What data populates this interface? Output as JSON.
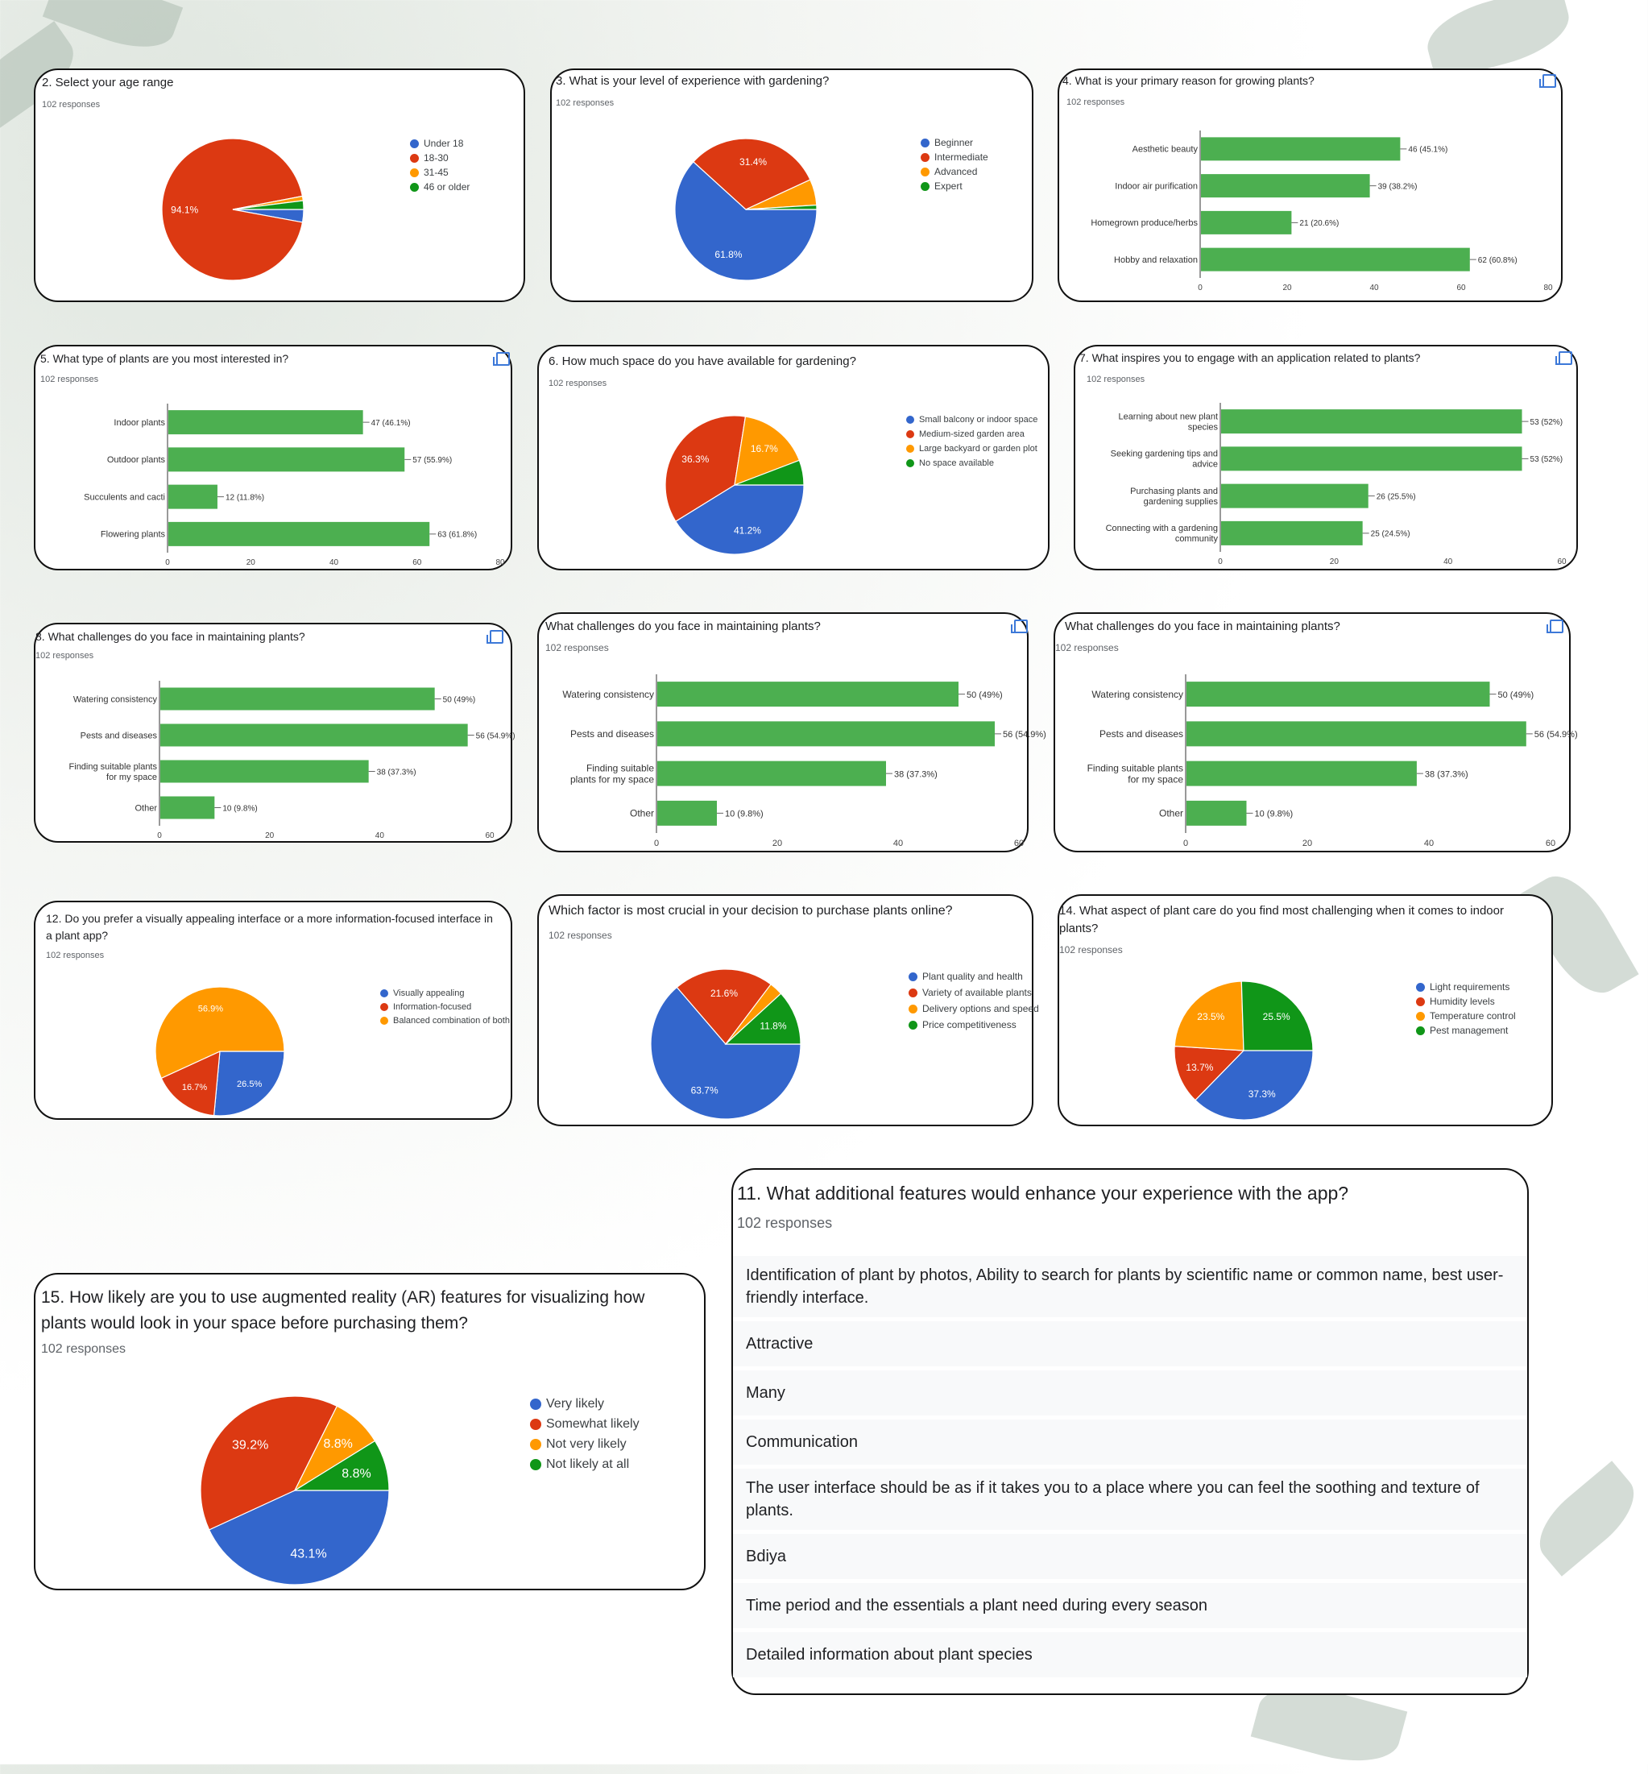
{
  "colors": {
    "blue": "#3366cc",
    "red": "#dc3912",
    "orange": "#ff9900",
    "green": "#109618",
    "bar": "#4caf50"
  },
  "panels": {
    "age": {
      "title": "2. Select your age range",
      "responses": "102 responses"
    },
    "experience": {
      "title": "3. What is your level of experience with gardening?",
      "responses": "102 responses"
    },
    "reason": {
      "title": "4. What is your primary reason for growing plants?",
      "responses": "102 responses"
    },
    "plant_types": {
      "title": "5. What type of plants are you most interested in?",
      "responses": "102 responses"
    },
    "space": {
      "title": "6. How much space do you have available for gardening?",
      "responses": "102 responses"
    },
    "inspires": {
      "title": "7. What inspires you to engage with an application related to plants?",
      "responses": "102 responses"
    },
    "challenges_a": {
      "title": "8. What challenges do you face in maintaining plants?",
      "responses": "102 responses"
    },
    "challenges_b": {
      "title": "What challenges do you face in maintaining plants?",
      "responses": "102 responses"
    },
    "challenges_c": {
      "title": "What challenges do you face in maintaining plants?",
      "responses": "102 responses"
    },
    "interface": {
      "title": "12. Do you prefer a visually appealing interface or a more information-focused interface in a plant app?",
      "responses": "102 responses"
    },
    "factor": {
      "title": "Which factor is most crucial in your decision to purchase plants online?",
      "responses": "102 responses"
    },
    "care": {
      "title": "14. What aspect of plant care do you find most challenging when it comes to indoor plants?",
      "responses": "102 responses"
    },
    "ar": {
      "title": "15. How likely are you to use augmented reality (AR) features for visualizing how plants would look in your space before purchasing them?",
      "responses": "102 responses"
    },
    "features": {
      "title": "11. What additional features would enhance your experience with the app?",
      "responses": "102 responses",
      "answers": [
        "Identification of plant by photos, Ability to search for plants by scientific name or common name, best user-friendly interface.",
        "Attractive",
        "Many",
        "Communication",
        "The user interface should be as if it takes you to a place where you can feel the soothing and texture of plants.",
        "Bdiya",
        "Time period and the essentials a plant need during every season",
        "Detailed information about plant species"
      ]
    }
  },
  "chart_data": [
    {
      "id": "age",
      "type": "pie",
      "labels": [
        "Under 18",
        "18-30",
        "31-45",
        "46 or older"
      ],
      "values": [
        2.9,
        94.1,
        1.0,
        2.0
      ],
      "slice_labels": [
        "",
        "94.1%",
        "",
        ""
      ]
    },
    {
      "id": "experience",
      "type": "pie",
      "labels": [
        "Beginner",
        "Intermediate",
        "Advanced",
        "Expert"
      ],
      "values": [
        61.8,
        31.4,
        5.9,
        1.0
      ],
      "slice_labels": [
        "61.8%",
        "31.4%",
        "",
        ""
      ]
    },
    {
      "id": "reason",
      "type": "bar",
      "categories": [
        "Aesthetic beauty",
        "Indoor air purification",
        "Homegrown produce/herbs",
        "Hobby and relaxation"
      ],
      "values": [
        46,
        39,
        21,
        62
      ],
      "value_labels": [
        "46 (45.1%)",
        "39 (38.2%)",
        "21 (20.6%)",
        "62 (60.8%)"
      ],
      "xlim": [
        0,
        80
      ],
      "ticks": [
        0,
        20,
        40,
        60,
        80
      ]
    },
    {
      "id": "plant_types",
      "type": "bar",
      "categories": [
        "Indoor plants",
        "Outdoor plants",
        "Succulents and cacti",
        "Flowering plants"
      ],
      "values": [
        47,
        57,
        12,
        63
      ],
      "value_labels": [
        "47 (46.1%)",
        "57 (55.9%)",
        "12 (11.8%)",
        "63 (61.8%)"
      ],
      "xlim": [
        0,
        80
      ],
      "ticks": [
        0,
        20,
        40,
        60,
        80
      ]
    },
    {
      "id": "space",
      "type": "pie",
      "labels": [
        "Small balcony or indoor space",
        "Medium-sized garden area",
        "Large backyard or garden plot",
        "No space available"
      ],
      "values": [
        41.2,
        36.3,
        16.7,
        5.8
      ],
      "slice_labels": [
        "41.2%",
        "36.3%",
        "16.7%",
        ""
      ]
    },
    {
      "id": "inspires",
      "type": "bar",
      "categories": [
        "Learning about new plant species",
        "Seeking gardening tips and advice",
        "Purchasing plants and gardening supplies",
        "Connecting with a gardening community"
      ],
      "values": [
        53,
        53,
        26,
        25
      ],
      "value_labels": [
        "53 (52%)",
        "53 (52%)",
        "26 (25.5%)",
        "25 (24.5%)"
      ],
      "xlim": [
        0,
        60
      ],
      "ticks": [
        0,
        20,
        40,
        60
      ]
    },
    {
      "id": "challenges_a",
      "type": "bar",
      "categories": [
        "Watering consistency",
        "Pests and diseases",
        "Finding suitable plants for my space",
        "Other"
      ],
      "values": [
        50,
        56,
        38,
        10
      ],
      "value_labels": [
        "50 (49%)",
        "56 (54.9%)",
        "38 (37.3%)",
        "10 (9.8%)"
      ],
      "xlim": [
        0,
        60
      ],
      "ticks": [
        0,
        20,
        40,
        60
      ]
    },
    {
      "id": "challenges_b",
      "type": "bar",
      "categories": [
        "Watering consistency",
        "Pests and diseases",
        "Finding suitable plants for my space",
        "Other"
      ],
      "values": [
        50,
        56,
        38,
        10
      ],
      "value_labels": [
        "50 (49%)",
        "56 (54.9%)",
        "38 (37.3%)",
        "10 (9.8%)"
      ],
      "xlim": [
        0,
        60
      ],
      "ticks": [
        0,
        20,
        40,
        60
      ]
    },
    {
      "id": "challenges_c",
      "type": "bar",
      "categories": [
        "Watering consistency",
        "Pests and diseases",
        "Finding suitable plants for my space",
        "Other"
      ],
      "values": [
        50,
        56,
        38,
        10
      ],
      "value_labels": [
        "50 (49%)",
        "56 (54.9%)",
        "38 (37.3%)",
        "10 (9.8%)"
      ],
      "xlim": [
        0,
        60
      ],
      "ticks": [
        0,
        20,
        40,
        60
      ]
    },
    {
      "id": "interface",
      "type": "pie",
      "labels": [
        "Visually appealing",
        "Information-focused",
        "Balanced combination of both"
      ],
      "values": [
        26.5,
        16.7,
        56.9
      ],
      "slice_labels": [
        "26.5%",
        "16.7%",
        "56.9%"
      ]
    },
    {
      "id": "factor",
      "type": "pie",
      "labels": [
        "Plant quality and health",
        "Variety of available plants",
        "Delivery options and speed",
        "Price competitiveness"
      ],
      "values": [
        63.7,
        21.6,
        2.9,
        11.8
      ],
      "slice_labels": [
        "63.7%",
        "21.6%",
        "",
        "11.8%"
      ]
    },
    {
      "id": "care",
      "type": "pie",
      "labels": [
        "Light requirements",
        "Humidity levels",
        "Temperature control",
        "Pest management"
      ],
      "values": [
        37.3,
        13.7,
        23.5,
        25.5
      ],
      "slice_labels": [
        "37.3%",
        "13.7%",
        "23.5%",
        "25.5%"
      ]
    },
    {
      "id": "ar",
      "type": "pie",
      "labels": [
        "Very likely",
        "Somewhat likely",
        "Not very likely",
        "Not likely at all"
      ],
      "values": [
        43.1,
        39.2,
        8.8,
        8.8
      ],
      "slice_labels": [
        "43.1%",
        "39.2%",
        "8.8%",
        "8.8%"
      ]
    }
  ]
}
